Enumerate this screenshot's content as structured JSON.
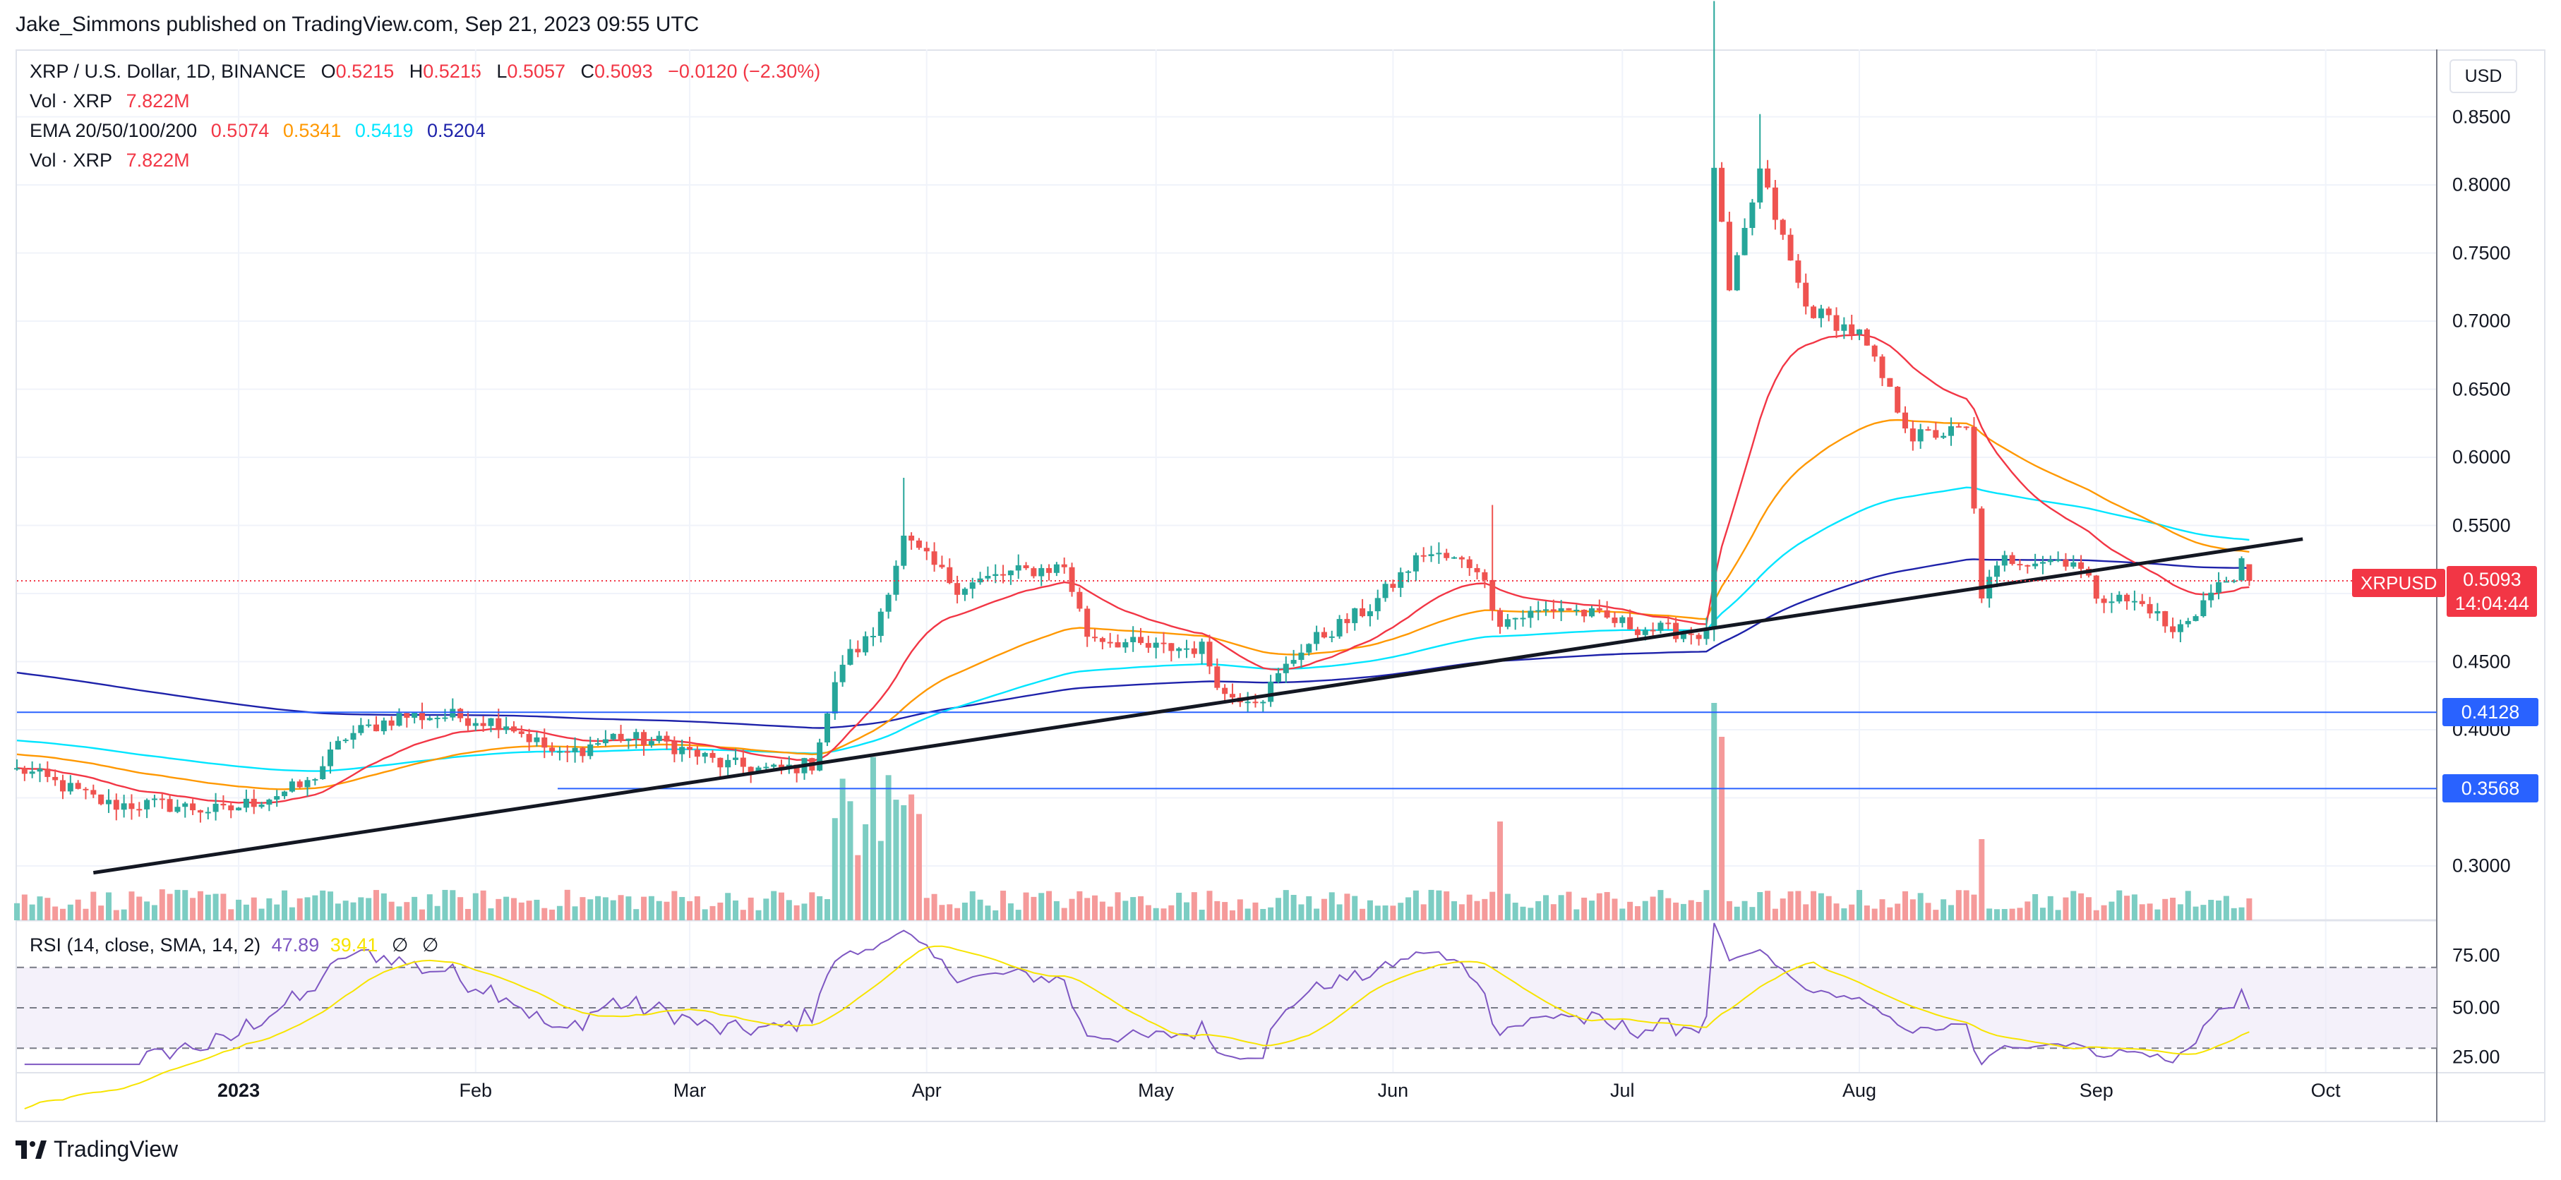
{
  "header": {
    "publisher": "Jake_Simmons published on TradingView.com, Sep 21, 2023 09:55 UTC"
  },
  "legend": {
    "symbol": "XRP / U.S. Dollar, 1D, BINANCE",
    "o_label": "O",
    "o_value": "0.5215",
    "h_label": "H",
    "h_value": "0.5215",
    "l_label": "L",
    "l_value": "0.5057",
    "c_label": "C",
    "c_value": "0.5093",
    "change": "−0.0120 (−2.30%)",
    "vol1_label": "Vol · XRP",
    "vol1_value": "7.822M",
    "ema_label": "EMA 20/50/100/200",
    "ema20": "0.5074",
    "ema50": "0.5341",
    "ema100": "0.5419",
    "ema200": "0.5204",
    "vol2_label": "Vol · XRP",
    "vol2_value": "7.822M"
  },
  "rsi_legend": {
    "label": "RSI (14, close, SMA, 14, 2)",
    "rsi": "47.89",
    "sma": "39.41",
    "icon1": "∅",
    "icon2": "∅"
  },
  "currency_button": "USD",
  "price_axis": {
    "ticks": [
      "0.8500",
      "0.8000",
      "0.7500",
      "0.7000",
      "0.6500",
      "0.6000",
      "0.5500",
      "0.4500",
      "0.4000",
      "0.3000"
    ],
    "levels": [
      {
        "label": "0.4128",
        "value": 0.4128
      },
      {
        "label": "0.3568",
        "value": 0.3568
      }
    ],
    "current": {
      "symbol": "XRPUSD",
      "price": "0.5093",
      "countdown": "14:04:44",
      "value": 0.5093
    }
  },
  "rsi_axis": {
    "ticks": [
      "75.00",
      "50.00",
      "25.00"
    ]
  },
  "time_axis": {
    "labels": [
      "2023",
      "Feb",
      "Mar",
      "Apr",
      "May",
      "Jun",
      "Jul",
      "Aug",
      "Sep",
      "Oct"
    ]
  },
  "brand": "TradingView",
  "colors": {
    "up": "#26a69a",
    "down": "#ef5350",
    "ema20": "#f23645",
    "ema50": "#ff9800",
    "ema100": "#00e5ff",
    "ema200": "#1e22aa",
    "rsi": "#7e57c2",
    "rsi_sma": "#f7e400",
    "level": "#2962ff",
    "trendline": "#131722"
  },
  "chart_data": {
    "type": "candlestick",
    "symbol": "XRP / U.S. Dollar, 1D, BINANCE",
    "x_range": [
      "2022-12-03",
      "2023-10-31"
    ],
    "y_range": [
      0.28,
      0.87
    ],
    "keypoints": [
      {
        "date": "2022-12-04",
        "close": 0.37
      },
      {
        "date": "2022-12-15",
        "close": 0.345
      },
      {
        "date": "2022-12-22",
        "close": 0.345
      },
      {
        "date": "2022-12-30",
        "close": 0.34
      },
      {
        "date": "2023-01-10",
        "close": 0.36
      },
      {
        "date": "2023-01-15",
        "close": 0.395
      },
      {
        "date": "2023-01-22",
        "close": 0.41
      },
      {
        "date": "2023-01-29",
        "close": 0.41
      },
      {
        "date": "2023-02-05",
        "close": 0.405
      },
      {
        "date": "2023-02-12",
        "close": 0.38
      },
      {
        "date": "2023-02-19",
        "close": 0.395
      },
      {
        "date": "2023-02-26",
        "close": 0.39
      },
      {
        "date": "2023-03-05",
        "close": 0.375
      },
      {
        "date": "2023-03-12",
        "close": 0.37
      },
      {
        "date": "2023-03-17",
        "close": 0.375
      },
      {
        "date": "2023-03-21",
        "close": 0.45
      },
      {
        "date": "2023-03-25",
        "close": 0.47
      },
      {
        "date": "2023-03-29",
        "close": 0.54
      },
      {
        "date": "2023-04-05",
        "close": 0.505
      },
      {
        "date": "2023-04-12",
        "close": 0.515
      },
      {
        "date": "2023-04-19",
        "close": 0.52
      },
      {
        "date": "2023-04-22",
        "close": 0.47
      },
      {
        "date": "2023-04-30",
        "close": 0.46
      },
      {
        "date": "2023-05-07",
        "close": 0.46
      },
      {
        "date": "2023-05-10",
        "close": 0.425
      },
      {
        "date": "2023-05-15",
        "close": 0.425
      },
      {
        "date": "2023-05-20",
        "close": 0.46
      },
      {
        "date": "2023-05-29",
        "close": 0.49
      },
      {
        "date": "2023-06-05",
        "close": 0.53
      },
      {
        "date": "2023-06-12",
        "close": 0.52
      },
      {
        "date": "2023-06-15",
        "close": 0.48
      },
      {
        "date": "2023-06-23",
        "close": 0.49
      },
      {
        "date": "2023-07-03",
        "close": 0.475
      },
      {
        "date": "2023-07-12",
        "close": 0.47
      },
      {
        "date": "2023-07-13",
        "close": 0.815
      },
      {
        "date": "2023-07-15",
        "close": 0.72
      },
      {
        "date": "2023-07-19",
        "close": 0.81
      },
      {
        "date": "2023-07-25",
        "close": 0.71
      },
      {
        "date": "2023-08-01",
        "close": 0.69
      },
      {
        "date": "2023-08-08",
        "close": 0.615
      },
      {
        "date": "2023-08-15",
        "close": 0.62
      },
      {
        "date": "2023-08-17",
        "close": 0.5
      },
      {
        "date": "2023-08-20",
        "close": 0.525
      },
      {
        "date": "2023-08-29",
        "close": 0.525
      },
      {
        "date": "2023-09-01",
        "close": 0.5
      },
      {
        "date": "2023-09-08",
        "close": 0.49
      },
      {
        "date": "2023-09-11",
        "close": 0.47
      },
      {
        "date": "2023-09-16",
        "close": 0.5
      },
      {
        "date": "2023-09-20",
        "close": 0.52
      },
      {
        "date": "2023-09-21",
        "close": 0.509
      }
    ],
    "last": {
      "open": 0.5215,
      "high": 0.5215,
      "low": 0.5057,
      "close": 0.5093,
      "volume": "7.822M"
    },
    "ema": {
      "20": 0.5074,
      "50": 0.5341,
      "100": 0.5419,
      "200": 0.5204
    },
    "horizontal_levels": [
      0.4128,
      0.3568
    ],
    "trendline": [
      {
        "date": "2022-12-13",
        "value": 0.295
      },
      {
        "date": "2023-09-28",
        "value": 0.54
      }
    ],
    "rsi": {
      "value": 47.89,
      "sma": 39.41,
      "levels": [
        70,
        50,
        30
      ],
      "axis_ticks": [
        75,
        50,
        25
      ]
    }
  }
}
